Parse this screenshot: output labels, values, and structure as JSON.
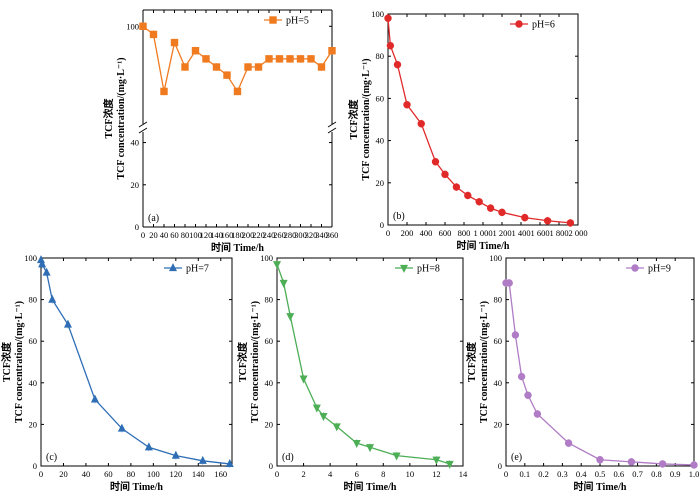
{
  "chart_data": [
    {
      "id": "a",
      "type": "line",
      "panel_label": "(a)",
      "color": "#F07A1F",
      "marker": "square",
      "series": [
        {
          "name": "pH=5",
          "x": [
            0,
            20,
            40,
            60,
            80,
            100,
            120,
            140,
            160,
            180,
            200,
            220,
            240,
            260,
            280,
            300,
            320,
            340,
            360
          ],
          "y": [
            100,
            99,
            92,
            98,
            95,
            97,
            96,
            95,
            94,
            92,
            95,
            95,
            96,
            96,
            96,
            96,
            96,
            95,
            97
          ]
        }
      ],
      "xlabel": "时间 Time/h",
      "ylabel": [
        "TCF浓度",
        "TCF concentration/(mg·L⁻¹)"
      ],
      "xlim": [
        0,
        360
      ],
      "xticks": [
        0,
        20,
        40,
        60,
        80,
        100,
        120,
        140,
        160,
        180,
        200,
        220,
        240,
        260,
        280,
        300,
        320,
        340,
        360
      ],
      "xtick_labels": [
        "0",
        "20",
        "40",
        "60",
        "80",
        "100",
        "120",
        "140",
        "160",
        "180",
        "200",
        "220",
        "240",
        "260",
        "280",
        "300",
        "320",
        "340",
        "360"
      ],
      "y_break": true,
      "ylim_lower": [
        0,
        45
      ],
      "ylim_upper": [
        88,
        102
      ],
      "yticks_lower": [
        0,
        20,
        40
      ],
      "yticks_upper": [
        100
      ],
      "ytick_labels_lower": [
        "0",
        "20",
        "40"
      ],
      "ytick_labels_upper": [
        "100"
      ],
      "legend_position": "top-right"
    },
    {
      "id": "b",
      "type": "line",
      "panel_label": "(b)",
      "color": "#E02A2A",
      "marker": "circle",
      "series": [
        {
          "name": "pH=6",
          "x": [
            0,
            25,
            100,
            200,
            350,
            500,
            600,
            720,
            840,
            960,
            1080,
            1200,
            1440,
            1680,
            1920
          ],
          "y": [
            98,
            85,
            76,
            57,
            48,
            30,
            24,
            18,
            14,
            11,
            8,
            6,
            3.5,
            2,
            1
          ]
        }
      ],
      "xlabel": "时间 Time/h",
      "ylabel": [
        "TCF浓度",
        "TCF concentration/(mg·L⁻¹)"
      ],
      "xlim": [
        0,
        2000
      ],
      "ylim": [
        0,
        100
      ],
      "xticks": [
        0,
        200,
        400,
        600,
        800,
        1000,
        1200,
        1400,
        1600,
        1800,
        2000
      ],
      "xtick_labels": [
        "0",
        "200",
        "400",
        "600",
        "800",
        "1 000",
        "1 200",
        "1 400",
        "1 600",
        "1 800",
        "2 000"
      ],
      "yticks": [
        0,
        20,
        40,
        60,
        80,
        100
      ],
      "ytick_labels": [
        "0",
        "20",
        "40",
        "60",
        "80",
        "100"
      ],
      "legend_position": "top-right"
    },
    {
      "id": "c",
      "type": "line",
      "panel_label": "(c)",
      "color": "#2F6EB5",
      "marker": "triangle-up",
      "series": [
        {
          "name": "pH=7",
          "x": [
            0,
            1,
            5,
            10,
            24,
            48,
            72,
            96,
            120,
            144,
            168
          ],
          "y": [
            99,
            97,
            93,
            80,
            68,
            32,
            18,
            9,
            5,
            2.5,
            1
          ]
        }
      ],
      "xlabel": "时间 Time/h",
      "ylabel": [
        "TCF浓度",
        "TCF concentration/(mg·L⁻¹)"
      ],
      "xlim": [
        0,
        170
      ],
      "ylim": [
        0,
        100
      ],
      "xticks": [
        0,
        20,
        40,
        60,
        80,
        100,
        120,
        140,
        160
      ],
      "xtick_labels": [
        "0",
        "20",
        "40",
        "60",
        "80",
        "100",
        "120",
        "140",
        "160"
      ],
      "yticks": [
        0,
        20,
        40,
        60,
        80,
        100
      ],
      "ytick_labels": [
        "0",
        "20",
        "40",
        "60",
        "80",
        "100"
      ],
      "legend_position": "top-right"
    },
    {
      "id": "d",
      "type": "line",
      "panel_label": "(d)",
      "color": "#4DAE56",
      "marker": "triangle-down",
      "series": [
        {
          "name": "pH=8",
          "x": [
            0,
            0.5,
            1,
            2,
            3,
            3.5,
            4.5,
            6,
            7,
            9,
            12,
            13
          ],
          "y": [
            97,
            88,
            72,
            42,
            28,
            24,
            19,
            11,
            9,
            5,
            3,
            1
          ]
        }
      ],
      "xlabel": "时间 Time/h",
      "ylabel": [
        "TCF浓度",
        "TCF concentration/(mg·L⁻¹)"
      ],
      "xlim": [
        0,
        14
      ],
      "ylim": [
        0,
        100
      ],
      "xticks": [
        0,
        2,
        4,
        6,
        8,
        10,
        12,
        14
      ],
      "xtick_labels": [
        "0",
        "2",
        "4",
        "6",
        "8",
        "10",
        "12",
        "14"
      ],
      "yticks": [
        0,
        20,
        40,
        60,
        80,
        100
      ],
      "ytick_labels": [
        "0",
        "20",
        "40",
        "60",
        "80",
        "100"
      ],
      "legend_position": "top-right"
    },
    {
      "id": "e",
      "type": "line",
      "panel_label": "(e)",
      "color": "#B07CC6",
      "marker": "circle",
      "series": [
        {
          "name": "pH=9",
          "x": [
            0,
            0.017,
            0.05,
            0.083,
            0.117,
            0.167,
            0.333,
            0.5,
            0.667,
            0.833,
            1.0
          ],
          "y": [
            88,
            88,
            63,
            43,
            34,
            25,
            11,
            3,
            2,
            1,
            0.5
          ]
        }
      ],
      "xlabel": "时间 Time/h",
      "ylabel": [
        "TCF浓度",
        "TCF concentration/(mg·L⁻¹)"
      ],
      "xlim": [
        0,
        1.0
      ],
      "ylim": [
        0,
        100
      ],
      "xticks": [
        0,
        0.1,
        0.2,
        0.3,
        0.4,
        0.5,
        0.6,
        0.7,
        0.8,
        0.9,
        1.0
      ],
      "xtick_labels": [
        "0",
        "0.1",
        "0.2",
        "0.3",
        "0.4",
        "0.5",
        "0.6",
        "0.7",
        "0.8",
        "0.9",
        "1.0"
      ],
      "yticks": [
        0,
        20,
        40,
        60,
        80,
        100
      ],
      "ytick_labels": [
        "0",
        "20",
        "40",
        "60",
        "80",
        "100"
      ],
      "legend_position": "top-right"
    }
  ]
}
